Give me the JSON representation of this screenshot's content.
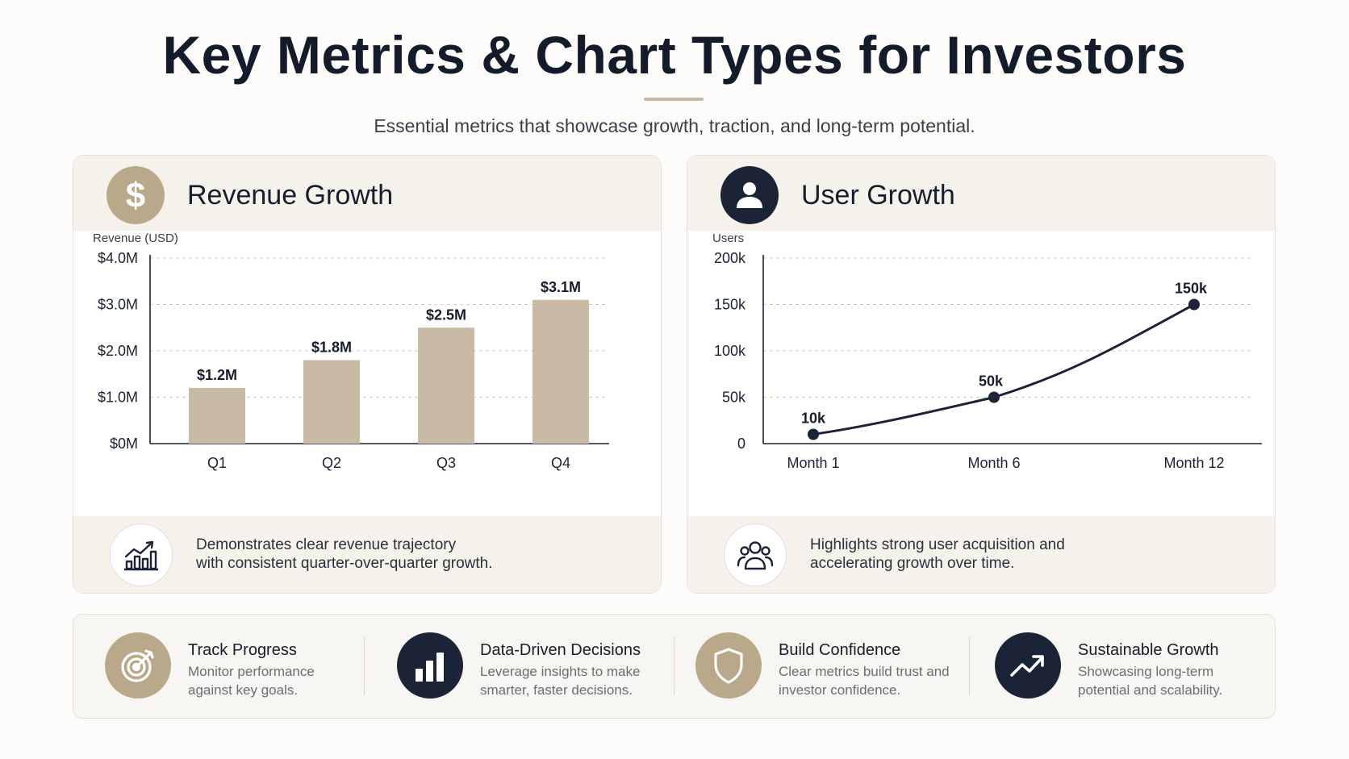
{
  "page": {
    "title": "Key Metrics & Chart Types for Investors",
    "subtitle": "Essential metrics that showcase growth, traction, and long-term potential."
  },
  "cards": {
    "revenue": {
      "title": "Revenue Growth",
      "icon": "dollar-icon",
      "footer_text_line1": "Demonstrates clear revenue trajectory",
      "footer_text_line2": "with consistent quarter-over-quarter growth.",
      "footer_icon": "bar-chart-trend-icon"
    },
    "users": {
      "title": "User Growth",
      "icon": "user-icon",
      "footer_text_line1": "Highlights strong user acquisition and",
      "footer_text_line2": "accelerating growth over time.",
      "footer_icon": "users-group-icon"
    }
  },
  "chart_data": [
    {
      "type": "bar",
      "ylabel": "Revenue (USD)",
      "categories": [
        "Q1",
        "Q2",
        "Q3",
        "Q4"
      ],
      "values": [
        1.2,
        1.8,
        2.5,
        3.1
      ],
      "data_labels": [
        "$1.2M",
        "$1.8M",
        "$2.5M",
        "$3.1M"
      ],
      "ylim": [
        0,
        4
      ],
      "yticks": [
        0,
        1,
        2,
        3,
        4
      ],
      "ytick_labels": [
        "$0M",
        "$1.0M",
        "$2.0M",
        "$3.0M",
        "$4.0M"
      ],
      "grid": true,
      "color": "#c8baa4"
    },
    {
      "type": "line",
      "ylabel": "Users",
      "categories": [
        "Month 1",
        "Month 6",
        "Month 12"
      ],
      "x": [
        1,
        6,
        12
      ],
      "values": [
        10000,
        50000,
        150000
      ],
      "data_labels": [
        "10k",
        "50k",
        "150k"
      ],
      "ylim": [
        0,
        200000
      ],
      "yticks": [
        0,
        50000,
        100000,
        150000,
        200000
      ],
      "ytick_labels": [
        "0",
        "50k",
        "100k",
        "150k",
        "200k"
      ],
      "grid": true,
      "color": "#1b2436"
    }
  ],
  "benefits": [
    {
      "title": "Track Progress",
      "desc": "Monitor performance against key goals.",
      "icon": "target-icon",
      "icon_style": "tan"
    },
    {
      "title": "Data-Driven Decisions",
      "desc": "Leverage insights to make smarter, faster decisions.",
      "icon": "bar-chart-icon",
      "icon_style": "navy"
    },
    {
      "title": "Build Confidence",
      "desc": "Clear metrics build trust and investor confidence.",
      "icon": "shield-icon",
      "icon_style": "tan"
    },
    {
      "title": "Sustainable Growth",
      "desc": "Showcasing long-term potential and scalability.",
      "icon": "trend-up-icon",
      "icon_style": "navy"
    }
  ]
}
